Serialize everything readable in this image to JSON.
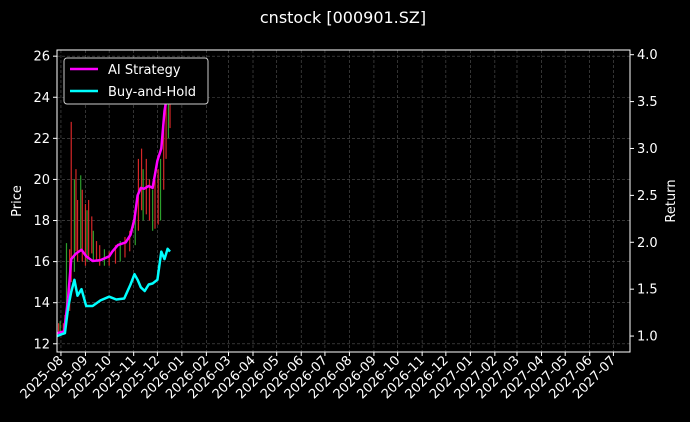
{
  "chart_data": {
    "type": "line",
    "title": "cnstock [000901.SZ]",
    "ylabel": "Price",
    "y2label": "Return",
    "ylim": [
      11.6,
      26.3
    ],
    "y2lim": [
      0.83,
      4.05
    ],
    "yticks": [
      12,
      14,
      16,
      18,
      20,
      22,
      24,
      26
    ],
    "y2ticks": [
      1.0,
      1.5,
      2.0,
      2.5,
      3.0,
      3.5,
      4.0
    ],
    "xlim": [
      "2025-07-27",
      "2027-07-22"
    ],
    "xticks": [
      "2025-08",
      "2025-09",
      "2025-10",
      "2025-11",
      "2025-12",
      "2026-01",
      "2026-02",
      "2026-03",
      "2026-04",
      "2026-05",
      "2026-06",
      "2026-07",
      "2026-08",
      "2026-09",
      "2026-10",
      "2026-11",
      "2026-12",
      "2027-01",
      "2027-02",
      "2027-03",
      "2027-04",
      "2027-05",
      "2027-06",
      "2027-07"
    ],
    "grid": true,
    "legend_position": "top-left",
    "background": "#000000",
    "candle_up_color": "#2ca02c",
    "candle_down_color": "#d62728",
    "candles": [
      {
        "x": "2025-07-29",
        "low": 12.6,
        "high": 13.0
      },
      {
        "x": "2025-07-31",
        "low": 12.5,
        "high": 13.1
      },
      {
        "x": "2025-08-04",
        "low": 12.6,
        "high": 13.0
      },
      {
        "x": "2025-08-06",
        "low": 12.7,
        "high": 13.4
      },
      {
        "x": "2025-08-08",
        "low": 13.5,
        "high": 16.9
      },
      {
        "x": "2025-08-12",
        "low": 13.6,
        "high": 16.6
      },
      {
        "x": "2025-08-14",
        "low": 15.0,
        "high": 22.8
      },
      {
        "x": "2025-08-18",
        "low": 15.5,
        "high": 20.0
      },
      {
        "x": "2025-08-20",
        "low": 16.5,
        "high": 20.5
      },
      {
        "x": "2025-08-22",
        "low": 16.0,
        "high": 19.0
      },
      {
        "x": "2025-08-26",
        "low": 16.5,
        "high": 20.2
      },
      {
        "x": "2025-08-28",
        "low": 16.0,
        "high": 19.5
      },
      {
        "x": "2025-09-01",
        "low": 15.8,
        "high": 18.8
      },
      {
        "x": "2025-09-03",
        "low": 16.0,
        "high": 18.5
      },
      {
        "x": "2025-09-05",
        "low": 16.2,
        "high": 19.0
      },
      {
        "x": "2025-09-09",
        "low": 16.4,
        "high": 18.2
      },
      {
        "x": "2025-09-11",
        "low": 16.0,
        "high": 17.5
      },
      {
        "x": "2025-09-15",
        "low": 16.0,
        "high": 17.0
      },
      {
        "x": "2025-09-19",
        "low": 15.8,
        "high": 16.8
      },
      {
        "x": "2025-09-25",
        "low": 15.8,
        "high": 16.6
      },
      {
        "x": "2025-10-01",
        "low": 15.8,
        "high": 16.5
      },
      {
        "x": "2025-10-09",
        "low": 15.9,
        "high": 16.8
      },
      {
        "x": "2025-10-15",
        "low": 16.0,
        "high": 17.0
      },
      {
        "x": "2025-10-21",
        "low": 16.2,
        "high": 17.2
      },
      {
        "x": "2025-10-27",
        "low": 16.5,
        "high": 17.5
      },
      {
        "x": "2025-11-03",
        "low": 16.8,
        "high": 18.5
      },
      {
        "x": "2025-11-07",
        "low": 17.5,
        "high": 21.0
      },
      {
        "x": "2025-11-11",
        "low": 18.5,
        "high": 21.5
      },
      {
        "x": "2025-11-13",
        "low": 18.0,
        "high": 20.5
      },
      {
        "x": "2025-11-17",
        "low": 18.3,
        "high": 21.0
      },
      {
        "x": "2025-11-21",
        "low": 18.0,
        "high": 20.0
      },
      {
        "x": "2025-11-25",
        "low": 17.5,
        "high": 19.5
      },
      {
        "x": "2025-11-28",
        "low": 17.6,
        "high": 20.0
      },
      {
        "x": "2025-12-02",
        "low": 17.8,
        "high": 20.5
      },
      {
        "x": "2025-12-05",
        "low": 18.0,
        "high": 21.0
      },
      {
        "x": "2025-12-09",
        "low": 19.5,
        "high": 23.0
      },
      {
        "x": "2025-12-12",
        "low": 21.0,
        "high": 24.5
      },
      {
        "x": "2025-12-15",
        "low": 22.0,
        "high": 25.8
      },
      {
        "x": "2025-12-17",
        "low": 22.5,
        "high": 24.8
      }
    ],
    "series": [
      {
        "name": "AI Strategy",
        "color": "#ff00ff",
        "axis": "right",
        "x": [
          "2025-07-27",
          "2025-08-05",
          "2025-08-10",
          "2025-08-14",
          "2025-08-20",
          "2025-08-27",
          "2025-09-02",
          "2025-09-10",
          "2025-09-20",
          "2025-10-01",
          "2025-10-05",
          "2025-10-12",
          "2025-10-22",
          "2025-10-28",
          "2025-11-02",
          "2025-11-06",
          "2025-11-10",
          "2025-11-14",
          "2025-11-20",
          "2025-11-25",
          "2025-12-01",
          "2025-12-06",
          "2025-12-10",
          "2025-12-14",
          "2025-12-17"
        ],
        "values": [
          1.03,
          1.05,
          1.4,
          1.82,
          1.88,
          1.92,
          1.85,
          1.8,
          1.81,
          1.85,
          1.9,
          1.97,
          2.0,
          2.08,
          2.25,
          2.5,
          2.58,
          2.57,
          2.6,
          2.58,
          2.87,
          3.0,
          3.4,
          3.6,
          3.65
        ]
      },
      {
        "name": "Buy-and-Hold",
        "color": "#00ffff",
        "axis": "right",
        "x": [
          "2025-07-27",
          "2025-08-02",
          "2025-08-06",
          "2025-08-10",
          "2025-08-14",
          "2025-08-18",
          "2025-08-22",
          "2025-08-27",
          "2025-09-02",
          "2025-09-10",
          "2025-09-20",
          "2025-10-01",
          "2025-10-10",
          "2025-10-20",
          "2025-10-28",
          "2025-11-02",
          "2025-11-06",
          "2025-11-10",
          "2025-11-15",
          "2025-11-20",
          "2025-11-25",
          "2025-12-01",
          "2025-12-06",
          "2025-12-10",
          "2025-12-14",
          "2025-12-17"
        ],
        "values": [
          1.0,
          1.02,
          1.03,
          1.3,
          1.47,
          1.6,
          1.43,
          1.5,
          1.32,
          1.32,
          1.38,
          1.42,
          1.39,
          1.4,
          1.55,
          1.66,
          1.6,
          1.52,
          1.48,
          1.55,
          1.56,
          1.6,
          1.9,
          1.82,
          1.93,
          1.9
        ]
      }
    ]
  }
}
